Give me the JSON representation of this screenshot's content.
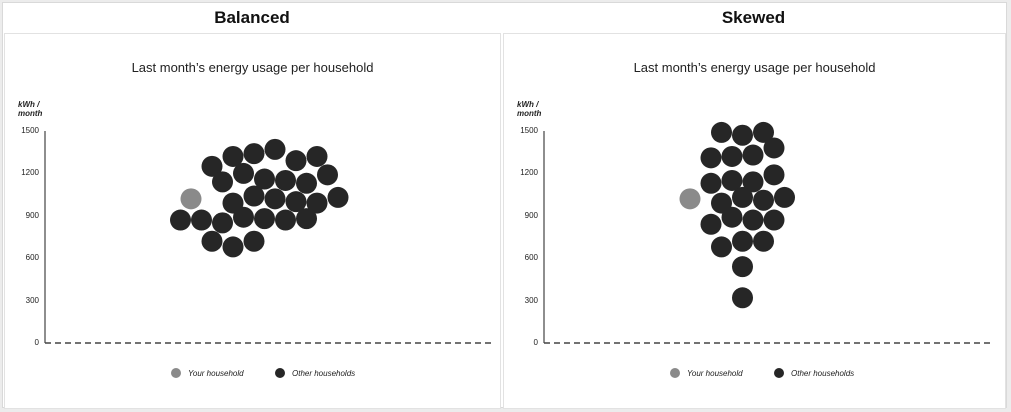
{
  "colors": {
    "your": "#8a8a8a",
    "other": "#262626",
    "axis": "#444444"
  },
  "chart_data": [
    {
      "header": "Balanced",
      "type": "scatter",
      "title": "Last month’s energy usage per household",
      "ylabel_line1": "kWh /",
      "ylabel_line2": "month",
      "ylim": [
        0,
        1500
      ],
      "yticks": [
        0,
        300,
        600,
        900,
        1200,
        1500
      ],
      "legend": {
        "your": "Your household",
        "other": "Other households"
      },
      "your_household": {
        "x": 1,
        "y": 1020
      },
      "other_households": [
        {
          "x": 2,
          "y": 1250
        },
        {
          "x": 3,
          "y": 1320
        },
        {
          "x": 4,
          "y": 1340
        },
        {
          "x": 5,
          "y": 1370
        },
        {
          "x": 6,
          "y": 1290
        },
        {
          "x": 7,
          "y": 1320
        },
        {
          "x": 2.5,
          "y": 1140
        },
        {
          "x": 3.5,
          "y": 1200
        },
        {
          "x": 4.5,
          "y": 1160
        },
        {
          "x": 5.5,
          "y": 1150
        },
        {
          "x": 6.5,
          "y": 1130
        },
        {
          "x": 7.5,
          "y": 1190
        },
        {
          "x": 3,
          "y": 990
        },
        {
          "x": 4,
          "y": 1040
        },
        {
          "x": 5,
          "y": 1020
        },
        {
          "x": 6,
          "y": 1000
        },
        {
          "x": 7,
          "y": 990
        },
        {
          "x": 8,
          "y": 1030
        },
        {
          "x": 0.5,
          "y": 870
        },
        {
          "x": 1.5,
          "y": 870
        },
        {
          "x": 2.5,
          "y": 850
        },
        {
          "x": 3.5,
          "y": 890
        },
        {
          "x": 4.5,
          "y": 880
        },
        {
          "x": 5.5,
          "y": 870
        },
        {
          "x": 6.5,
          "y": 880
        },
        {
          "x": 2,
          "y": 720
        },
        {
          "x": 3,
          "y": 680
        },
        {
          "x": 4,
          "y": 720
        }
      ]
    },
    {
      "header": "Skewed",
      "type": "scatter",
      "title": "Last month’s energy usage per household",
      "ylabel_line1": "kWh /",
      "ylabel_line2": "month",
      "ylim": [
        0,
        1500
      ],
      "yticks": [
        0,
        300,
        600,
        900,
        1200,
        1500
      ],
      "legend": {
        "your": "Your household",
        "other": "Other households"
      },
      "your_household": {
        "x": 1,
        "y": 1020
      },
      "other_households": [
        {
          "x": 2.5,
          "y": 1490
        },
        {
          "x": 3.5,
          "y": 1470
        },
        {
          "x": 4.5,
          "y": 1490
        },
        {
          "x": 2,
          "y": 1310
        },
        {
          "x": 3,
          "y": 1320
        },
        {
          "x": 4,
          "y": 1330
        },
        {
          "x": 5,
          "y": 1380
        },
        {
          "x": 2,
          "y": 1130
        },
        {
          "x": 3,
          "y": 1150
        },
        {
          "x": 4,
          "y": 1140
        },
        {
          "x": 5,
          "y": 1190
        },
        {
          "x": 2.5,
          "y": 990
        },
        {
          "x": 3.5,
          "y": 1030
        },
        {
          "x": 4.5,
          "y": 1010
        },
        {
          "x": 5.5,
          "y": 1030
        },
        {
          "x": 2,
          "y": 840
        },
        {
          "x": 3,
          "y": 890
        },
        {
          "x": 4,
          "y": 870
        },
        {
          "x": 5,
          "y": 870
        },
        {
          "x": 2.5,
          "y": 680
        },
        {
          "x": 3.5,
          "y": 720
        },
        {
          "x": 4.5,
          "y": 720
        },
        {
          "x": 3.5,
          "y": 540
        },
        {
          "x": 3.5,
          "y": 320
        }
      ]
    }
  ]
}
